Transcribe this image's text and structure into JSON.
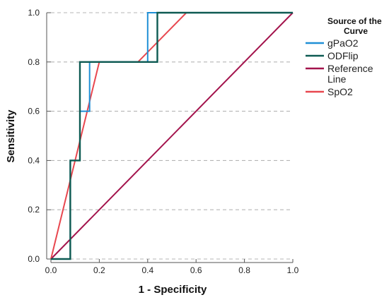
{
  "chart_data": {
    "type": "line",
    "title": "",
    "xlabel": "1 - Specificity",
    "ylabel": "Sensitivity",
    "xlim": [
      0,
      1
    ],
    "ylim": [
      0,
      1
    ],
    "x_ticks": [
      "0.0",
      "0.2",
      "0.4",
      "0.6",
      "0.8",
      "1.0"
    ],
    "y_ticks": [
      "0.0",
      "0.2",
      "0.4",
      "0.6",
      "0.8",
      "1.0"
    ],
    "grid": "horizontal dashed",
    "legend": {
      "title": "Source of the Curve",
      "placement": "top-right, outside plot"
    },
    "series": [
      {
        "name": "gPaO2",
        "color": "#1f8fd6",
        "points": [
          [
            0,
            0
          ],
          [
            0.08,
            0
          ],
          [
            0.08,
            0.4
          ],
          [
            0.12,
            0.4
          ],
          [
            0.12,
            0.6
          ],
          [
            0.16,
            0.6
          ],
          [
            0.16,
            0.8
          ],
          [
            0.4,
            0.8
          ],
          [
            0.4,
            1.0
          ],
          [
            1.0,
            1.0
          ]
        ]
      },
      {
        "name": "ODFlip",
        "color": "#0d5a52",
        "points": [
          [
            0,
            0
          ],
          [
            0.08,
            0
          ],
          [
            0.08,
            0.4
          ],
          [
            0.12,
            0.4
          ],
          [
            0.12,
            0.8
          ],
          [
            0.36,
            0.8
          ],
          [
            0.36,
            0.8
          ],
          [
            0.44,
            0.8
          ],
          [
            0.44,
            1.0
          ],
          [
            1.0,
            1.0
          ]
        ]
      },
      {
        "name": "Reference Line",
        "color": "#a3134c",
        "points": [
          [
            0,
            0
          ],
          [
            1,
            1
          ]
        ]
      },
      {
        "name": "SpO2",
        "color": "#e8474f",
        "points": [
          [
            0,
            0
          ],
          [
            0.2,
            0.8
          ],
          [
            0.36,
            0.8
          ],
          [
            0.56,
            1.0
          ],
          [
            1.0,
            1.0
          ]
        ]
      }
    ]
  }
}
